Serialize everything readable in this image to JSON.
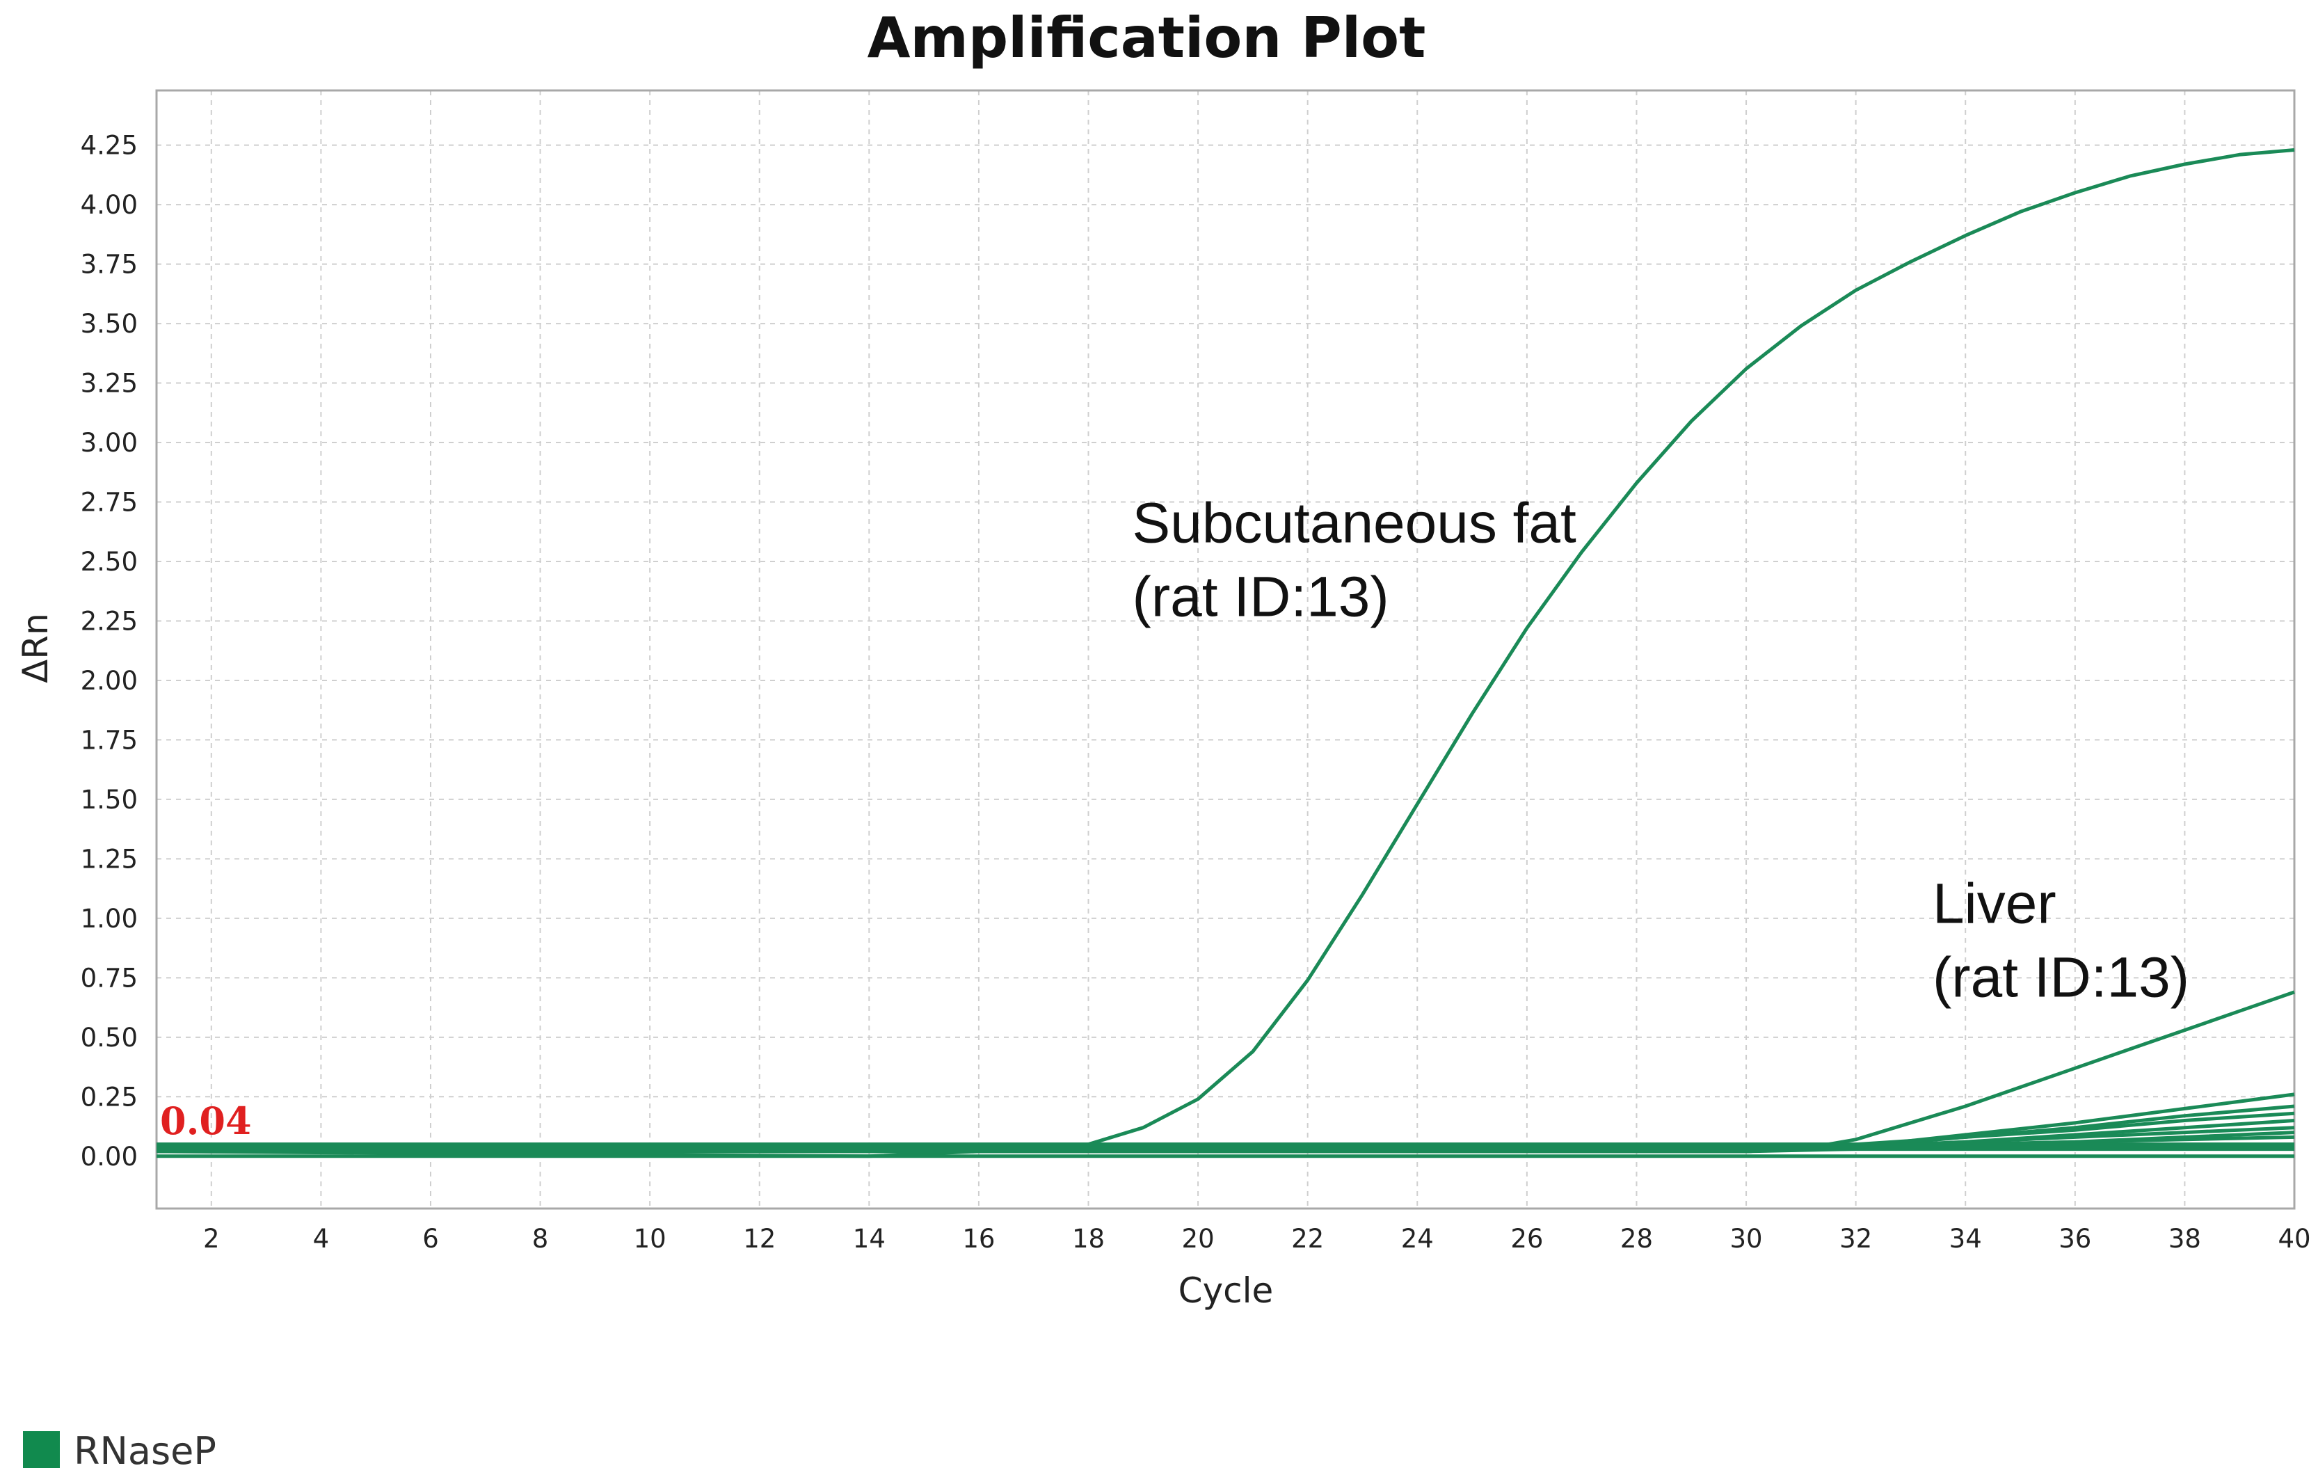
{
  "chart_data": {
    "type": "line",
    "title": "Amplification Plot",
    "xlabel": "Cycle",
    "ylabel": "ΔRn",
    "xlim": [
      1,
      40
    ],
    "ylim": [
      -0.22,
      4.48
    ],
    "xticks": [
      2,
      4,
      6,
      8,
      10,
      12,
      14,
      16,
      18,
      20,
      22,
      24,
      26,
      28,
      30,
      32,
      34,
      36,
      38,
      40
    ],
    "yticks": [
      "0.00",
      "0.25",
      "0.50",
      "0.75",
      "1.00",
      "1.25",
      "1.50",
      "1.75",
      "2.00",
      "2.25",
      "2.50",
      "2.75",
      "3.00",
      "3.25",
      "3.50",
      "3.75",
      "4.00",
      "4.25"
    ],
    "grid": true,
    "threshold": {
      "value": 0.04,
      "label": "0.04",
      "color": "#e02020"
    },
    "line_color": "#1a8a57",
    "annotations": [
      {
        "lines": [
          "Subcutaneous fat",
          "(rat ID:13)"
        ],
        "x": 18.8,
        "y": 2.58
      },
      {
        "lines": [
          "Liver",
          "(rat  ID:13)"
        ],
        "x": 33.4,
        "y": 0.98
      }
    ],
    "legend": {
      "position": "bottom-left",
      "entries": [
        {
          "label": "RNaseP",
          "color": "#118a4e"
        }
      ]
    },
    "series": [
      {
        "x": [
          1,
          14,
          16,
          17,
          18,
          19,
          20,
          21,
          22,
          23,
          24,
          25,
          26,
          27,
          28,
          29,
          30,
          31,
          32,
          33,
          34,
          35,
          36,
          37,
          38,
          39,
          40
        ],
        "y": [
          0.02,
          0.0,
          0.02,
          0.03,
          0.05,
          0.12,
          0.24,
          0.44,
          0.74,
          1.1,
          1.48,
          1.86,
          2.22,
          2.54,
          2.83,
          3.09,
          3.31,
          3.49,
          3.64,
          3.76,
          3.87,
          3.97,
          4.05,
          4.12,
          4.17,
          4.21,
          4.23
        ]
      },
      {
        "x": [
          1,
          30,
          31,
          32,
          33,
          34,
          35,
          36,
          37,
          38,
          39,
          40
        ],
        "y": [
          0.03,
          0.02,
          0.03,
          0.07,
          0.14,
          0.21,
          0.29,
          0.37,
          0.45,
          0.53,
          0.61,
          0.69
        ]
      },
      {
        "x": [
          1,
          30,
          32,
          34,
          36,
          38,
          39,
          40
        ],
        "y": [
          0.03,
          0.02,
          0.04,
          0.09,
          0.14,
          0.2,
          0.23,
          0.26
        ]
      },
      {
        "x": [
          1,
          30,
          32,
          34,
          36,
          38,
          40
        ],
        "y": [
          0.02,
          0.02,
          0.04,
          0.08,
          0.12,
          0.17,
          0.21
        ]
      },
      {
        "x": [
          1,
          30,
          32,
          34,
          36,
          38,
          40
        ],
        "y": [
          0.03,
          0.03,
          0.05,
          0.08,
          0.11,
          0.15,
          0.18
        ]
      },
      {
        "x": [
          1,
          30,
          32,
          34,
          36,
          38,
          40
        ],
        "y": [
          0.02,
          0.02,
          0.04,
          0.06,
          0.09,
          0.12,
          0.15
        ]
      },
      {
        "x": [
          1,
          30,
          32,
          34,
          36,
          38,
          40
        ],
        "y": [
          0.03,
          0.03,
          0.04,
          0.06,
          0.08,
          0.1,
          0.12
        ]
      },
      {
        "x": [
          1,
          30,
          32,
          34,
          36,
          38,
          40
        ],
        "y": [
          0.02,
          0.02,
          0.03,
          0.05,
          0.06,
          0.08,
          0.1
        ]
      },
      {
        "x": [
          1,
          30,
          32,
          34,
          36,
          38,
          40
        ],
        "y": [
          0.03,
          0.03,
          0.04,
          0.05,
          0.06,
          0.07,
          0.08
        ]
      },
      {
        "x": [
          1,
          40
        ],
        "y": [
          0.05,
          0.05
        ]
      },
      {
        "x": [
          1,
          40
        ],
        "y": [
          0.04,
          0.04
        ]
      },
      {
        "x": [
          1,
          40
        ],
        "y": [
          0.0,
          0.0
        ]
      }
    ]
  }
}
